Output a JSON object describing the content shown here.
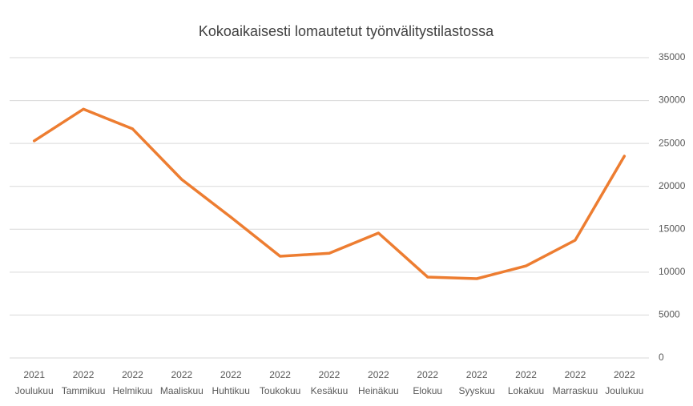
{
  "chart_data": {
    "type": "line",
    "title": "Kokoaikaisesti lomautetut työnvälitystilastossa",
    "categories": [
      [
        "2021",
        "Joulukuu"
      ],
      [
        "2022",
        "Tammikuu"
      ],
      [
        "2022",
        "Helmikuu"
      ],
      [
        "2022",
        "Maaliskuu"
      ],
      [
        "2022",
        "Huhtikuu"
      ],
      [
        "2022",
        "Toukokuu"
      ],
      [
        "2022",
        "Kesäkuu"
      ],
      [
        "2022",
        "Heinäkuu"
      ],
      [
        "2022",
        "Elokuu"
      ],
      [
        "2022",
        "Syyskuu"
      ],
      [
        "2022",
        "Lokakuu"
      ],
      [
        "2022",
        "Marraskuu"
      ],
      [
        "2022",
        "Joulukuu"
      ]
    ],
    "series": [
      {
        "name": "Kokoaikaisesti lomautetut",
        "color": "#ed7d31",
        "values": [
          25300,
          29000,
          26700,
          20800,
          16400,
          11850,
          12200,
          14560,
          9430,
          9240,
          10730,
          13720,
          23520
        ]
      }
    ],
    "ylim": [
      0,
      35000
    ],
    "yticks": [
      0,
      5000,
      10000,
      15000,
      20000,
      25000,
      30000,
      35000
    ],
    "grid": true,
    "y_axis_side": "right"
  }
}
